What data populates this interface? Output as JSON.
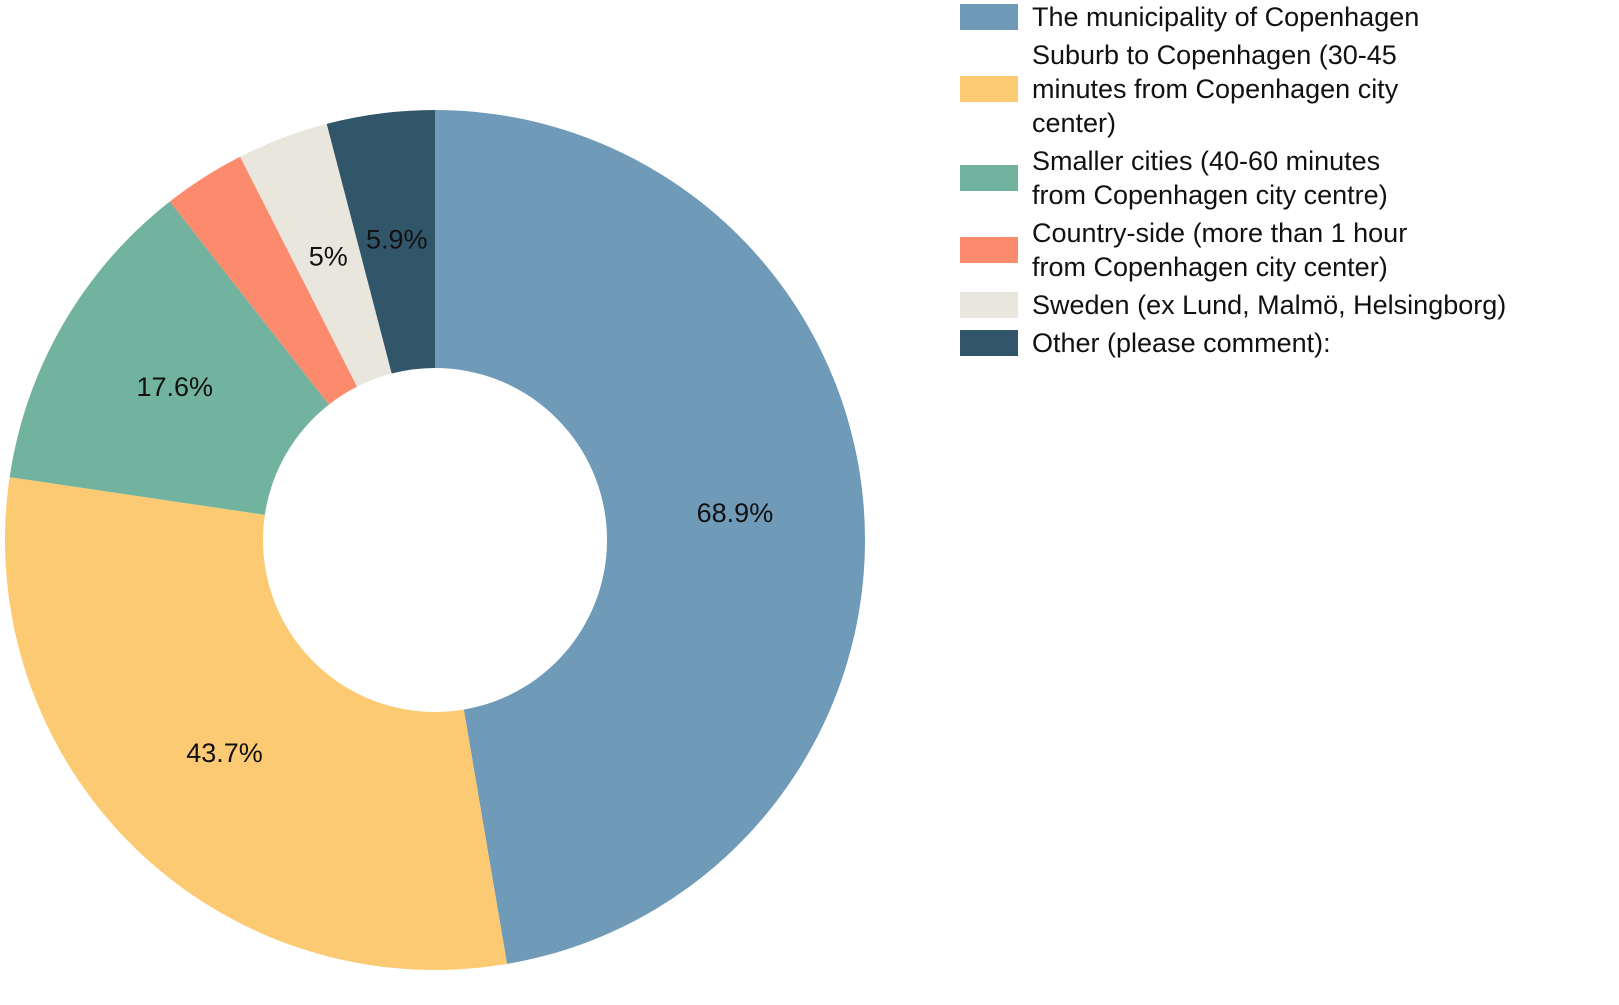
{
  "chart_data": {
    "type": "donut",
    "categories": [
      "The municipality of Copenhagen",
      "Suburb to Copenhagen (30-45 minutes from Copenhagen city center)",
      "Smaller cities (40-60 minutes from Copenhagen city centre)",
      "Country-side (more than 1 hour from Copenhagen city center)",
      "Sweden (ex Lund, Malmö, Helsingborg)",
      "Other (please comment):"
    ],
    "values": [
      68.9,
      43.7,
      17.6,
      4.5,
      5,
      5.9
    ],
    "value_labels": [
      "68.9%",
      "43.7%",
      "17.6%",
      null,
      "5%",
      "5.9%"
    ],
    "colors": [
      "#6f9ab8",
      "#fdca74",
      "#72b39f",
      "#fc8a6c",
      "#e9e6de",
      "#325669"
    ]
  }
}
